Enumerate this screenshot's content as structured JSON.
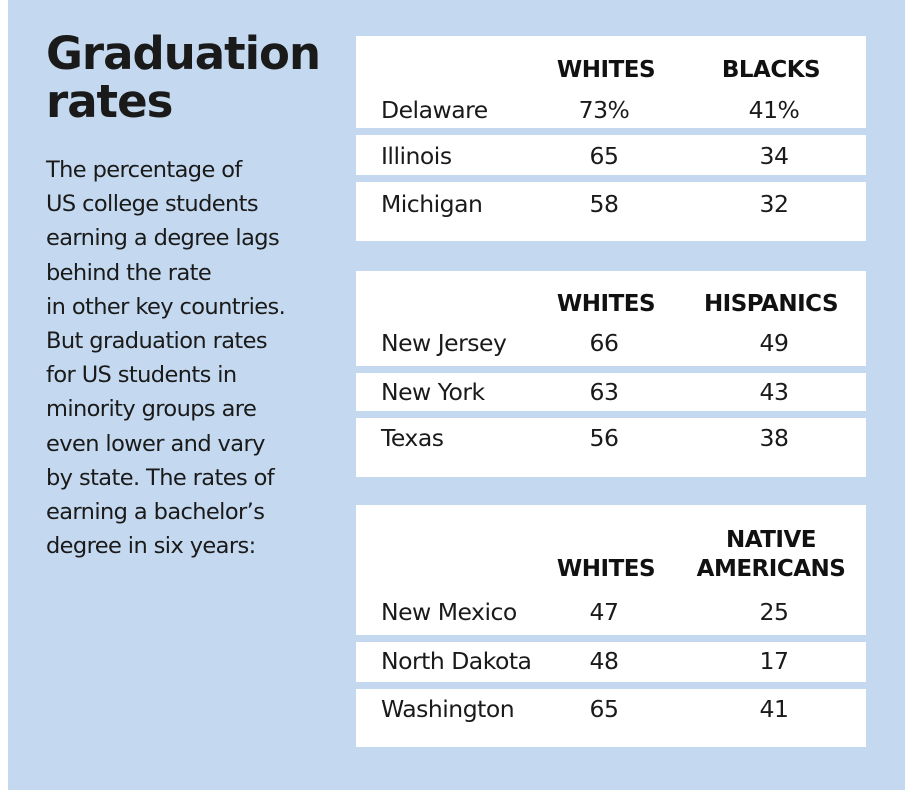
{
  "colors": {
    "panel_background": "#c4d9f0",
    "table_background": "#ffffff",
    "text": "#1a1a1a"
  },
  "title_lines": [
    "Graduation",
    "rates"
  ],
  "description_lines": [
    "The percentage of",
    "US college students",
    "earning a degree lags",
    "behind the rate",
    "in other key countries.",
    "But graduation rates",
    "for US students in",
    "minority groups are",
    "even lower and vary",
    "by state. The rates of",
    "earning a bachelor’s",
    "degree in six years:"
  ],
  "chart_data": {
    "type": "table",
    "title": "Graduation rates",
    "unit": "percent earning a bachelor’s degree in six years",
    "tables": [
      {
        "columns": [
          "WHITES",
          "BLACKS"
        ],
        "rows": [
          {
            "state": "Delaware",
            "values": [
              "73%",
              "41%"
            ]
          },
          {
            "state": "Illinois",
            "values": [
              "65",
              "34"
            ]
          },
          {
            "state": "Michigan",
            "values": [
              "58",
              "32"
            ]
          }
        ]
      },
      {
        "columns": [
          "WHITES",
          "HISPANICS"
        ],
        "rows": [
          {
            "state": "New Jersey",
            "values": [
              "66",
              "49"
            ]
          },
          {
            "state": "New York",
            "values": [
              "63",
              "43"
            ]
          },
          {
            "state": "Texas",
            "values": [
              "56",
              "38"
            ]
          }
        ]
      },
      {
        "columns": [
          "WHITES",
          "NATIVE AMERICANS"
        ],
        "column_lines": [
          [
            "WHITES"
          ],
          [
            "NATIVE",
            "AMERICANS"
          ]
        ],
        "rows": [
          {
            "state": "New Mexico",
            "values": [
              "47",
              "25"
            ]
          },
          {
            "state": "North Dakota",
            "values": [
              "48",
              "17"
            ]
          },
          {
            "state": "Washington",
            "values": [
              "65",
              "41"
            ]
          }
        ]
      }
    ]
  }
}
